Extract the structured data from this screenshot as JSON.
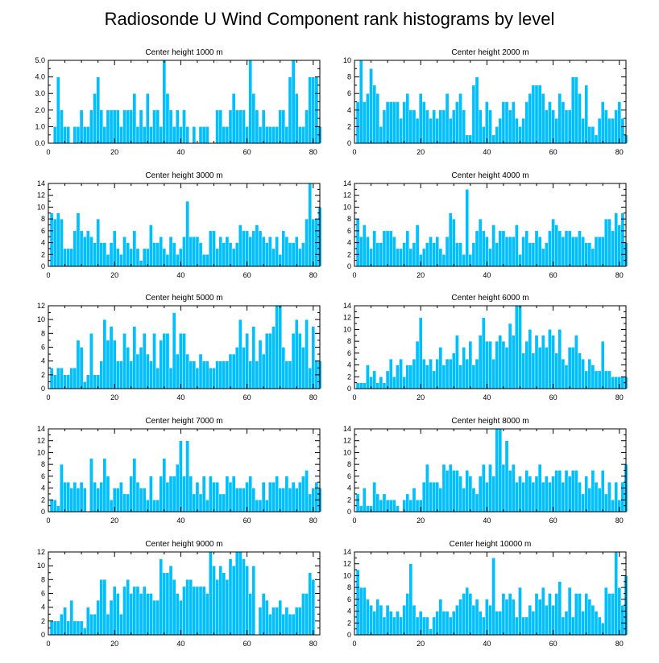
{
  "figure": {
    "title": "Radiosonde U Wind Component rank histograms by level",
    "bar_color": "#00bfff"
  },
  "chart_data": [
    {
      "type": "bar",
      "title": "Center height 1000 m",
      "xlabel": "",
      "ylabel": "",
      "xlim": [
        0,
        82
      ],
      "ylim": [
        0,
        5
      ],
      "xticks": [
        0,
        20,
        40,
        60,
        80
      ],
      "yticks": [
        0,
        1,
        2,
        3,
        4,
        5
      ],
      "ytick_labels": [
        "0.0",
        "1.0",
        "2.0",
        "3.0",
        "4.0",
        "5.0"
      ],
      "categories_start": 1,
      "values": [
        0,
        1,
        4,
        2,
        1,
        1,
        0,
        1,
        1,
        2,
        1,
        1,
        2,
        3,
        4,
        2,
        1,
        2,
        2,
        2,
        2,
        1,
        2,
        2,
        2,
        3,
        1,
        2,
        1,
        3,
        1,
        2,
        2,
        1,
        5,
        3,
        2,
        1,
        2,
        1,
        2,
        1,
        0,
        1,
        0,
        1,
        1,
        1,
        0,
        0,
        2,
        2,
        1,
        1,
        2,
        3,
        2,
        2,
        2,
        1,
        5,
        3,
        2,
        1,
        2,
        1,
        1,
        1,
        1,
        2,
        2,
        1,
        4,
        5,
        3,
        1,
        1,
        2,
        4,
        4,
        4,
        1
      ]
    },
    {
      "type": "bar",
      "title": "Center height 2000 m",
      "xlabel": "",
      "ylabel": "",
      "xlim": [
        0,
        82
      ],
      "ylim": [
        0,
        10
      ],
      "xticks": [
        0,
        20,
        40,
        60,
        80
      ],
      "yticks": [
        0,
        2,
        4,
        6,
        8,
        10
      ],
      "ytick_labels": [
        "0",
        "2",
        "4",
        "6",
        "8",
        "10"
      ],
      "categories_start": 1,
      "values": [
        5,
        10,
        5,
        6,
        9,
        7,
        6,
        2,
        4,
        5,
        5,
        5,
        5,
        3,
        5,
        6,
        4,
        4,
        3,
        6,
        5,
        4,
        3,
        4,
        3,
        4,
        4,
        6,
        3,
        4,
        5,
        6,
        4,
        1,
        1,
        7,
        8,
        4,
        2,
        5,
        4,
        1,
        2,
        3,
        5,
        5,
        4,
        5,
        3,
        2,
        3,
        5,
        6,
        7,
        7,
        7,
        6,
        4,
        5,
        4,
        3,
        6,
        5,
        4,
        4,
        8,
        8,
        6,
        3,
        7,
        2,
        2,
        1,
        3,
        5,
        4,
        3,
        3,
        4,
        5,
        3,
        1
      ]
    },
    {
      "type": "bar",
      "title": "Center height 3000 m",
      "xlabel": "",
      "ylabel": "",
      "xlim": [
        0,
        82
      ],
      "ylim": [
        0,
        14
      ],
      "xticks": [
        0,
        20,
        40,
        60,
        80
      ],
      "yticks": [
        0,
        2,
        4,
        6,
        8,
        10,
        12,
        14
      ],
      "ytick_labels": [
        "0",
        "2",
        "4",
        "6",
        "8",
        "10",
        "12",
        "14"
      ],
      "categories_start": 1,
      "values": [
        9,
        8,
        9,
        8,
        3,
        3,
        3,
        6,
        9,
        6,
        5,
        6,
        5,
        4,
        8,
        4,
        4,
        2,
        4,
        6,
        3,
        2,
        5,
        4,
        3,
        6,
        3,
        1,
        3,
        3,
        7,
        4,
        4,
        5,
        3,
        2,
        5,
        4,
        2,
        3,
        5,
        11,
        5,
        5,
        5,
        4,
        2,
        2,
        6,
        6,
        3,
        5,
        4,
        5,
        4,
        3,
        4,
        7,
        6,
        6,
        5,
        6,
        7,
        6,
        5,
        4,
        5,
        3,
        5,
        2,
        6,
        5,
        4,
        4,
        5,
        3,
        4,
        8,
        14,
        8,
        8,
        10
      ]
    },
    {
      "type": "bar",
      "title": "Center height 4000 m",
      "xlabel": "",
      "ylabel": "",
      "xlim": [
        0,
        82
      ],
      "ylim": [
        0,
        14
      ],
      "xticks": [
        0,
        20,
        40,
        60,
        80
      ],
      "yticks": [
        0,
        2,
        4,
        6,
        8,
        10,
        12,
        14
      ],
      "ytick_labels": [
        "0",
        "2",
        "4",
        "6",
        "8",
        "10",
        "12",
        "14"
      ],
      "categories_start": 1,
      "values": [
        8,
        5,
        7,
        5,
        3,
        6,
        4,
        4,
        6,
        6,
        6,
        5,
        3,
        3,
        4,
        6,
        3,
        4,
        7,
        2,
        3,
        4,
        5,
        4,
        5,
        3,
        2,
        5,
        9,
        8,
        4,
        4,
        2,
        13,
        2,
        4,
        6,
        8,
        6,
        5,
        3,
        7,
        4,
        6,
        6,
        5,
        5,
        5,
        7,
        2,
        5,
        6,
        4,
        4,
        6,
        5,
        3,
        4,
        6,
        8,
        7,
        6,
        5,
        6,
        6,
        5,
        5,
        6,
        5,
        4,
        4,
        3,
        5,
        5,
        5,
        8,
        8,
        6,
        9,
        7,
        9,
        4
      ]
    },
    {
      "type": "bar",
      "title": "Center height 5000 m",
      "xlabel": "",
      "ylabel": "",
      "xlim": [
        0,
        82
      ],
      "ylim": [
        0,
        12
      ],
      "xticks": [
        0,
        20,
        40,
        60,
        80
      ],
      "yticks": [
        0,
        2,
        4,
        6,
        8,
        10,
        12
      ],
      "ytick_labels": [
        "0",
        "2",
        "4",
        "6",
        "8",
        "10",
        "12"
      ],
      "categories_start": 1,
      "values": [
        3,
        2,
        3,
        3,
        2,
        2,
        3,
        3,
        7,
        6,
        1,
        2,
        8,
        2,
        2,
        4,
        10,
        7,
        9,
        7,
        4,
        4,
        8,
        6,
        4,
        9,
        5,
        6,
        8,
        5,
        4,
        8,
        3,
        7,
        8,
        8,
        3,
        11,
        5,
        8,
        8,
        5,
        4,
        4,
        3,
        5,
        4,
        4,
        3,
        3,
        4,
        4,
        4,
        4,
        5,
        5,
        6,
        10,
        6,
        8,
        4,
        9,
        4,
        7,
        5,
        8,
        8,
        9,
        12,
        12,
        6,
        4,
        4,
        8,
        10,
        8,
        6,
        10,
        3,
        9,
        4,
        4
      ]
    },
    {
      "type": "bar",
      "title": "Center height 6000 m",
      "xlabel": "",
      "ylabel": "",
      "xlim": [
        0,
        82
      ],
      "ylim": [
        0,
        14
      ],
      "xticks": [
        0,
        20,
        40,
        60,
        80
      ],
      "yticks": [
        0,
        2,
        4,
        6,
        8,
        10,
        12,
        14
      ],
      "ytick_labels": [
        "0",
        "2",
        "4",
        "6",
        "8",
        "10",
        "12",
        "14"
      ],
      "categories_start": 1,
      "values": [
        1,
        1,
        1,
        4,
        2,
        3,
        1,
        2,
        1,
        3,
        5,
        2,
        4,
        5,
        2,
        4,
        4,
        5,
        8,
        12,
        5,
        4,
        5,
        3,
        5,
        7,
        4,
        5,
        5,
        6,
        9,
        4,
        7,
        5,
        8,
        4,
        5,
        9,
        12,
        8,
        8,
        5,
        8,
        9,
        8,
        7,
        11,
        9,
        14,
        14,
        6,
        8,
        10,
        6,
        9,
        7,
        9,
        7,
        10,
        9,
        6,
        10,
        5,
        4,
        7,
        7,
        9,
        6,
        5,
        3,
        5,
        4,
        3,
        3,
        8,
        3,
        3,
        2,
        2,
        2,
        2,
        2
      ]
    },
    {
      "type": "bar",
      "title": "Center height 7000 m",
      "xlabel": "",
      "ylabel": "",
      "xlim": [
        0,
        82
      ],
      "ylim": [
        0,
        14
      ],
      "xticks": [
        0,
        20,
        40,
        60,
        80
      ],
      "yticks": [
        0,
        2,
        4,
        6,
        8,
        10,
        12,
        14
      ],
      "ytick_labels": [
        "0",
        "2",
        "4",
        "6",
        "8",
        "10",
        "12",
        "14"
      ],
      "categories_start": 1,
      "values": [
        2,
        2,
        1,
        8,
        5,
        5,
        4,
        5,
        4,
        5,
        4,
        0,
        9,
        5,
        4,
        5,
        9,
        6,
        2,
        4,
        4,
        5,
        3,
        3,
        6,
        9,
        5,
        4,
        4,
        2,
        6,
        2,
        2,
        6,
        9,
        5,
        6,
        6,
        8,
        12,
        6,
        12,
        6,
        3,
        5,
        3,
        6,
        2,
        6,
        5,
        5,
        3,
        3,
        6,
        5,
        6,
        4,
        4,
        4,
        5,
        6,
        4,
        2,
        2,
        5,
        2,
        5,
        5,
        6,
        4,
        4,
        6,
        4,
        5,
        4,
        5,
        6,
        7,
        3,
        4,
        5,
        4
      ]
    },
    {
      "type": "bar",
      "title": "Center height 8000 m",
      "xlabel": "",
      "ylabel": "",
      "xlim": [
        0,
        82
      ],
      "ylim": [
        0,
        14
      ],
      "xticks": [
        0,
        20,
        40,
        60,
        80
      ],
      "yticks": [
        0,
        2,
        4,
        6,
        8,
        10,
        12,
        14
      ],
      "ytick_labels": [
        "0",
        "2",
        "4",
        "6",
        "8",
        "10",
        "12",
        "14"
      ],
      "categories_start": 1,
      "values": [
        3,
        1,
        4,
        1,
        1,
        5,
        3,
        2,
        3,
        2,
        2,
        2,
        1,
        0,
        2,
        3,
        2,
        4,
        2,
        2,
        5,
        8,
        5,
        5,
        5,
        4,
        8,
        7,
        8,
        7,
        7,
        6,
        4,
        7,
        6,
        4,
        3,
        6,
        8,
        5,
        8,
        6,
        14,
        14,
        8,
        12,
        7,
        8,
        5,
        6,
        5,
        7,
        6,
        5,
        6,
        8,
        5,
        6,
        5,
        6,
        7,
        7,
        5,
        7,
        6,
        7,
        7,
        5,
        3,
        6,
        4,
        7,
        5,
        4,
        7,
        3,
        5,
        2,
        5,
        2,
        5,
        8
      ]
    },
    {
      "type": "bar",
      "title": "Center height 9000 m",
      "xlabel": "",
      "ylabel": "",
      "xlim": [
        0,
        82
      ],
      "ylim": [
        0,
        12
      ],
      "xticks": [
        0,
        20,
        40,
        60,
        80
      ],
      "yticks": [
        0,
        2,
        4,
        6,
        8,
        10,
        12
      ],
      "ytick_labels": [
        "0",
        "2",
        "4",
        "6",
        "8",
        "10",
        "12"
      ],
      "categories_start": 1,
      "values": [
        2,
        2,
        2,
        3,
        4,
        2,
        5,
        2,
        2,
        2,
        1,
        4,
        3,
        3,
        5,
        8,
        8,
        3,
        5,
        7,
        6,
        3,
        7,
        8,
        6,
        7,
        7,
        6,
        7,
        6,
        6,
        5,
        5,
        11,
        9,
        9,
        10,
        8,
        6,
        5,
        7,
        8,
        8,
        7,
        7,
        7,
        7,
        6,
        12,
        10,
        8,
        10,
        9,
        8,
        11,
        10,
        12,
        12,
        11,
        10,
        6,
        10,
        0,
        4,
        6,
        5,
        3,
        4,
        4,
        5,
        3,
        4,
        3,
        3,
        4,
        4,
        6,
        6,
        9,
        8
      ]
    },
    {
      "type": "bar",
      "title": "Center height 10000 m",
      "xlabel": "",
      "ylabel": "",
      "xlim": [
        0,
        82
      ],
      "ylim": [
        0,
        14
      ],
      "xticks": [
        0,
        20,
        40,
        60,
        80
      ],
      "yticks": [
        0,
        2,
        4,
        6,
        8,
        10,
        12,
        14
      ],
      "ytick_labels": [
        "0",
        "2",
        "4",
        "6",
        "8",
        "10",
        "12",
        "14"
      ],
      "categories_start": 1,
      "values": [
        11,
        8,
        8,
        6,
        5,
        4,
        6,
        5,
        3,
        5,
        4,
        3,
        4,
        3,
        5,
        7,
        12,
        5,
        3,
        4,
        3,
        3,
        1,
        3,
        4,
        6,
        4,
        4,
        3,
        4,
        5,
        6,
        7,
        8,
        7,
        5,
        6,
        4,
        3,
        6,
        5,
        13,
        4,
        4,
        7,
        6,
        7,
        6,
        3,
        8,
        3,
        3,
        5,
        4,
        7,
        6,
        8,
        5,
        7,
        5,
        7,
        9,
        3,
        4,
        8,
        3,
        7,
        7,
        4,
        7,
        6,
        5,
        4,
        3,
        2,
        8,
        7,
        7,
        14,
        8,
        5,
        10
      ]
    }
  ]
}
